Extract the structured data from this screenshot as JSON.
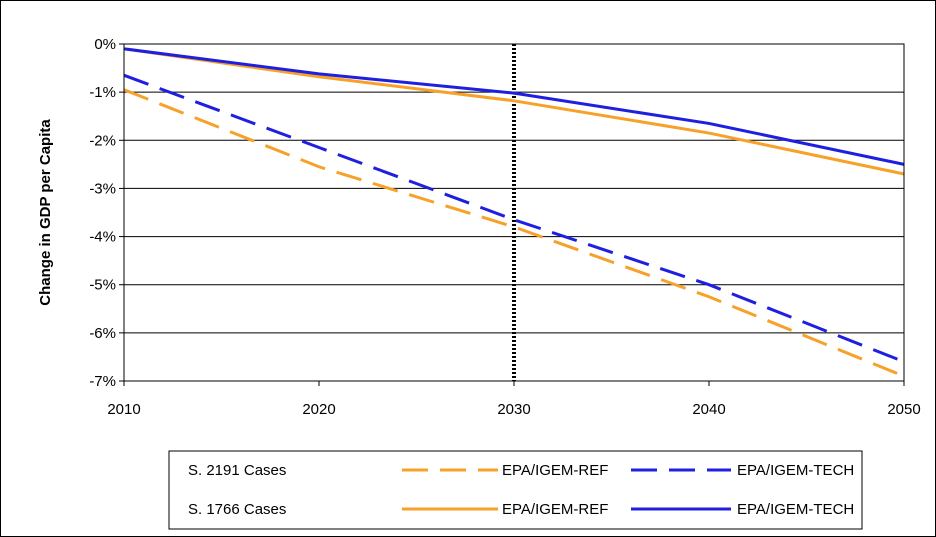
{
  "chart_data": {
    "type": "line",
    "x": [
      2010,
      2020,
      2030,
      2040,
      2050
    ],
    "ylabel": "Change in GDP per Capita",
    "xlim": [
      2010,
      2050
    ],
    "ylim": [
      -7,
      0
    ],
    "y_unit": "%",
    "x_ticks": [
      "2010",
      "2020",
      "2030",
      "2040",
      "2050"
    ],
    "y_ticks": [
      "0%",
      "-1%",
      "-2%",
      "-3%",
      "-4%",
      "-5%",
      "-6%",
      "-7%"
    ],
    "grid": "horizontal",
    "reference_line_x": 2030,
    "legend": {
      "placement": "bottom",
      "groups": [
        "S. 2191 Cases",
        "S. 1766 Cases"
      ]
    },
    "series": [
      {
        "group": "S. 2191 Cases",
        "name": "EPA/IGEM-REF",
        "color": "#f7a128",
        "style": "dashed",
        "values": [
          -0.95,
          -2.55,
          -3.8,
          -5.25,
          -6.9
        ]
      },
      {
        "group": "S. 2191 Cases",
        "name": "EPA/IGEM-TECH",
        "color": "#1f1fe0",
        "style": "dashed",
        "values": [
          -0.65,
          -2.15,
          -3.65,
          -5.0,
          -6.6
        ]
      },
      {
        "group": "S. 1766 Cases",
        "name": "EPA/IGEM-REF",
        "color": "#f7a128",
        "style": "solid",
        "values": [
          -0.1,
          -0.68,
          -1.18,
          -1.85,
          -2.7
        ]
      },
      {
        "group": "S. 1766 Cases",
        "name": "EPA/IGEM-TECH",
        "color": "#1f1fe0",
        "style": "solid",
        "values": [
          -0.1,
          -0.62,
          -1.02,
          -1.65,
          -2.5
        ]
      }
    ]
  }
}
